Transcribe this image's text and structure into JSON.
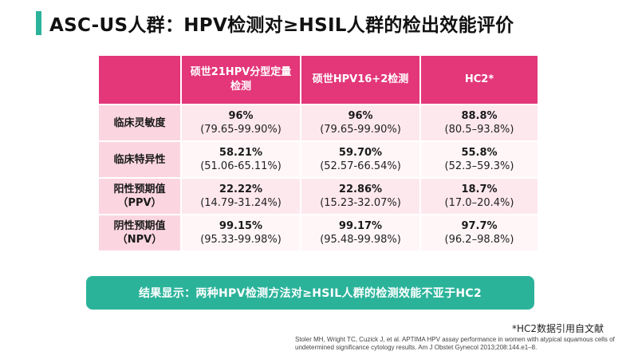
{
  "title": "ASC-US人群：HPV检测对≥HSIL人群的检出效能评价",
  "table": {
    "headers": [
      "",
      "硕世21HPV分型定量检测",
      "硕世HPV16+2检测",
      "HC2*"
    ],
    "rows": [
      {
        "label": "临床灵敏度",
        "cells": [
          {
            "value": "96%",
            "ci": "(79.65-99.90%)"
          },
          {
            "value": "96%",
            "ci": "(79.65-99.90%)"
          },
          {
            "value": "88.8%",
            "ci": "(80.5–93.8%)"
          }
        ]
      },
      {
        "label": "临床特异性",
        "cells": [
          {
            "value": "58.21%",
            "ci": "(51.06-65.11%)"
          },
          {
            "value": "59.70%",
            "ci": "(52.57-66.54%)"
          },
          {
            "value": "55.8%",
            "ci": "(52.3–59.3%)"
          }
        ]
      },
      {
        "label": "阳性预期值（PPV）",
        "cells": [
          {
            "value": "22.22%",
            "ci": "(14.79-31.24%)"
          },
          {
            "value": "22.86%",
            "ci": "(15.23-32.07%)"
          },
          {
            "value": "18.7%",
            "ci": "(17.0–20.4%)"
          }
        ]
      },
      {
        "label": "阴性预期值（NPV）",
        "cells": [
          {
            "value": "99.15%",
            "ci": "(95.33-99.98%)"
          },
          {
            "value": "99.17%",
            "ci": "(95.48-99.98%)"
          },
          {
            "value": "97.7%",
            "ci": "(96.2–98.8%)"
          }
        ]
      }
    ]
  },
  "conclusion": "结果显示：两种HPV检测方法对≥HSIL人群的检测效能不亚于HC2",
  "footnote": "*HC2数据引用自文献",
  "reference": "Stoler MH, Wright TC, Cuzick J, et al. APTIMA HPV assay performance in women with atypical squamous cells of undetermined significance cytology results. Am J Obstet Gynecol 2013;208:144.e1–8.",
  "colors": {
    "accent_green": "#2bb39a",
    "header_pink": "#e3377a",
    "label_pink": "#fbd6e1",
    "cell_pink": "#fde8ee"
  }
}
